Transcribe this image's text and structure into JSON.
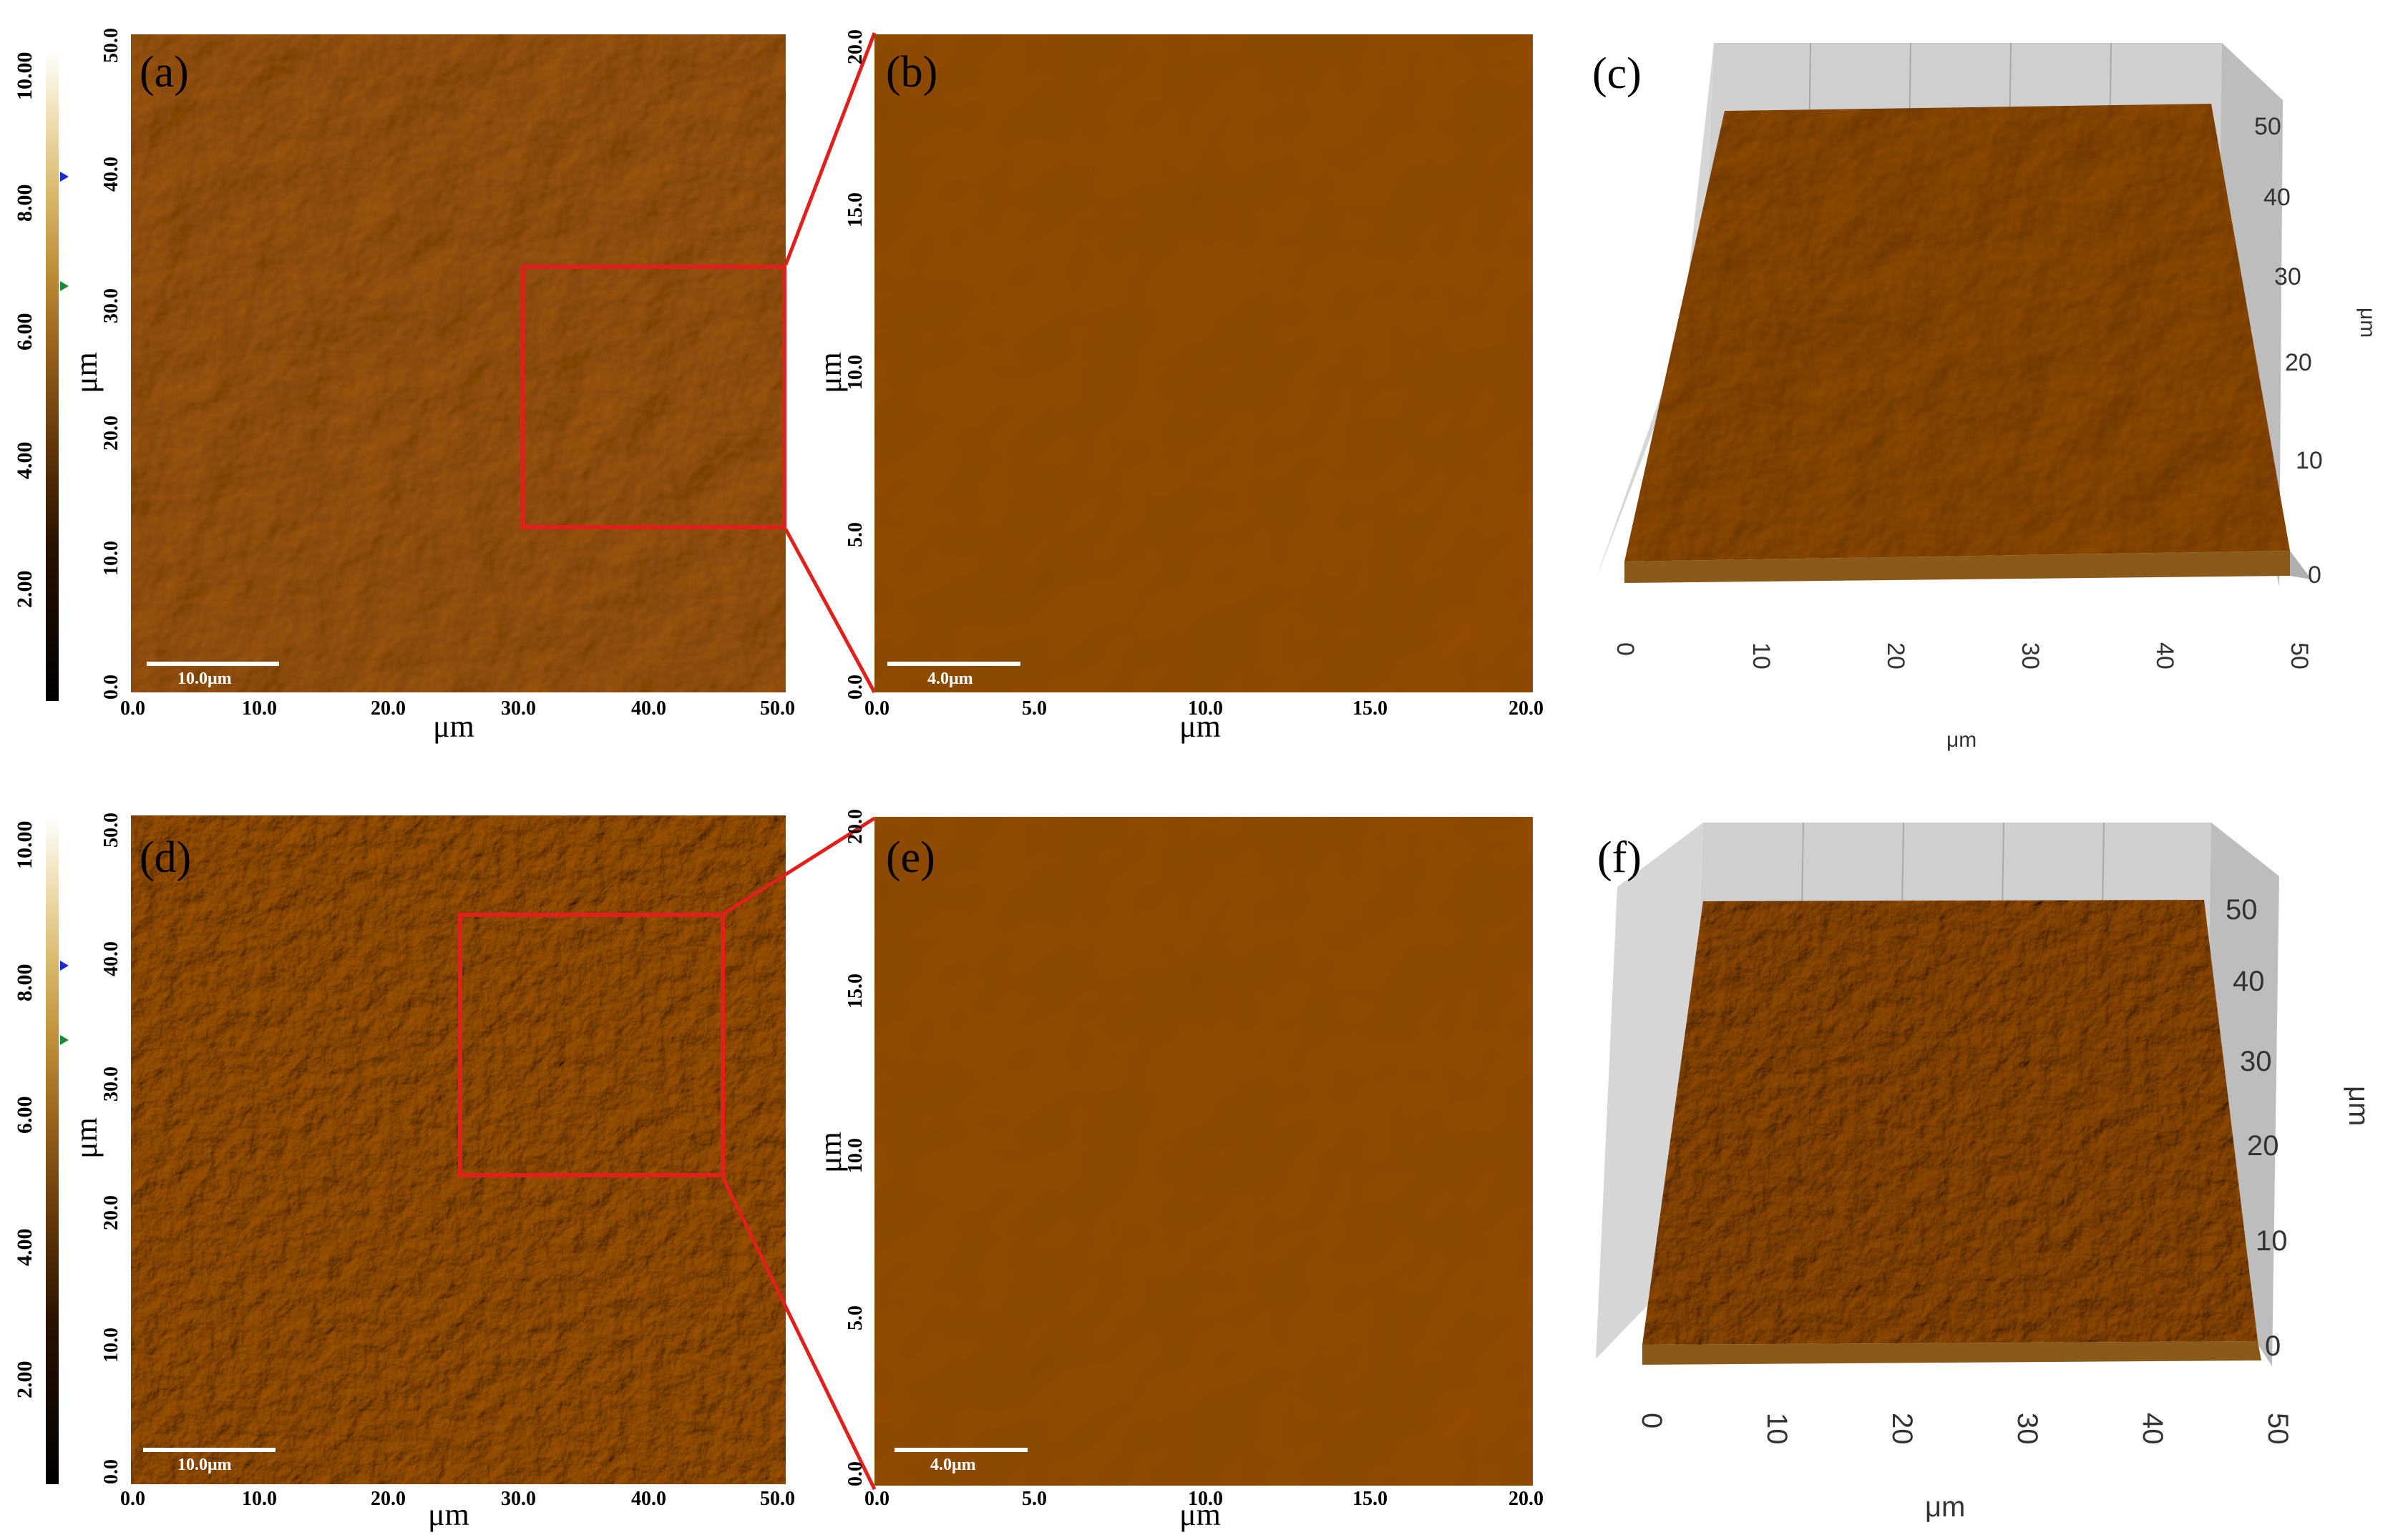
{
  "colorbar": {
    "ticks": [
      "10.00",
      "8.00",
      "6.00",
      "4.00",
      "2.00"
    ]
  },
  "row1": {
    "a": {
      "label": "(a)",
      "scale": "10.0μm",
      "x_ticks": [
        "0.0",
        "10.0",
        "20.0",
        "30.0",
        "40.0",
        "50.0"
      ],
      "y_ticks": [
        "0.0",
        "10.0",
        "20.0",
        "30.0",
        "40.0",
        "50.0"
      ],
      "x_axis": "μm",
      "y_axis": "μm"
    },
    "b": {
      "label": "(b)",
      "scale": "4.0μm",
      "x_ticks": [
        "0.0",
        "5.0",
        "10.0",
        "15.0",
        "20.0"
      ],
      "y_ticks": [
        "0.0",
        "5.0",
        "10.0",
        "15.0",
        "20.0"
      ],
      "x_axis": "μm",
      "y_axis": "μm"
    },
    "c": {
      "label": "(c)",
      "x_ticks": [
        "0",
        "10",
        "20",
        "30",
        "40",
        "50"
      ],
      "y_ticks": [
        "0",
        "10",
        "20",
        "30",
        "40",
        "50"
      ],
      "x_axis": "μm",
      "y_axis": "μm"
    }
  },
  "row2": {
    "d": {
      "label": "(d)",
      "scale": "10.0μm",
      "x_ticks": [
        "0.0",
        "10.0",
        "20.0",
        "30.0",
        "40.0",
        "50.0"
      ],
      "y_ticks": [
        "0.0",
        "10.0",
        "20.0",
        "30.0",
        "40.0",
        "50.0"
      ],
      "x_axis": "μm",
      "y_axis": "μm"
    },
    "e": {
      "label": "(e)",
      "scale": "4.0μm",
      "x_ticks": [
        "0.0",
        "5.0",
        "10.0",
        "15.0",
        "20.0"
      ],
      "y_ticks": [
        "0.0",
        "5.0",
        "10.0",
        "15.0",
        "20.0"
      ],
      "x_axis": "μm",
      "y_axis": "μm"
    },
    "f": {
      "label": "(f)",
      "x_ticks": [
        "0",
        "10",
        "20",
        "30",
        "40",
        "50"
      ],
      "y_ticks": [
        "0",
        "10",
        "20",
        "30",
        "40",
        "50"
      ],
      "x_axis": "μm",
      "y_axis": "μm"
    }
  },
  "colors": {
    "highlight_box": "#e0201b",
    "surface_dark": "#5e3308",
    "surface_light": "#d9a94a"
  }
}
